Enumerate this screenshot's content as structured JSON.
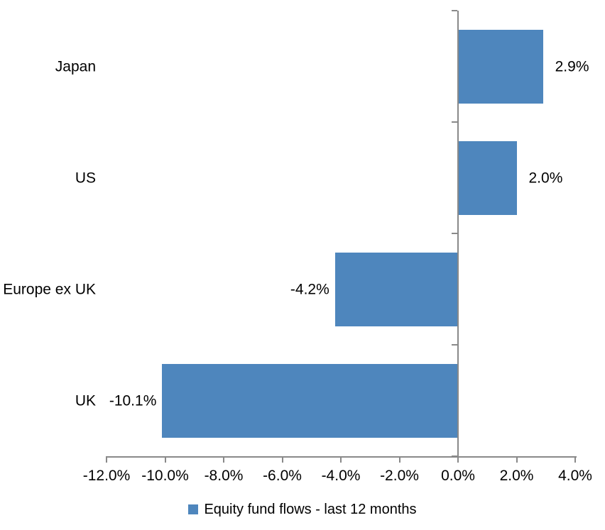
{
  "chart_data": {
    "type": "bar",
    "orientation": "horizontal",
    "title": "",
    "categories": [
      "Japan",
      "US",
      "Europe ex UK",
      "UK"
    ],
    "series": [
      {
        "name": "Equity fund flows - last 12 months",
        "values": [
          2.9,
          2.0,
          -4.2,
          -10.1
        ],
        "data_labels": [
          "2.9%",
          "2.0%",
          "-4.2%",
          "-10.1%"
        ],
        "color": "#4E86BD"
      }
    ],
    "xlabel": "",
    "ylabel": "",
    "xlim": [
      -12,
      4
    ],
    "x_ticks": [
      -12,
      -10,
      -8,
      -6,
      -4,
      -2,
      0,
      2,
      4
    ],
    "x_tick_labels": [
      "-12.0%",
      "-10.0%",
      "-8.0%",
      "-6.0%",
      "-4.0%",
      "-2.0%",
      "0.0%",
      "2.0%",
      "4.0%"
    ],
    "grid": false,
    "legend_position": "bottom",
    "colors": {
      "bar": "#4E86BD",
      "axis": "#898989",
      "text": "#000000",
      "background": "#FFFFFF"
    }
  },
  "legend": {
    "label": "Equity fund flows - last 12 months",
    "marker_color": "#4E86BD"
  }
}
